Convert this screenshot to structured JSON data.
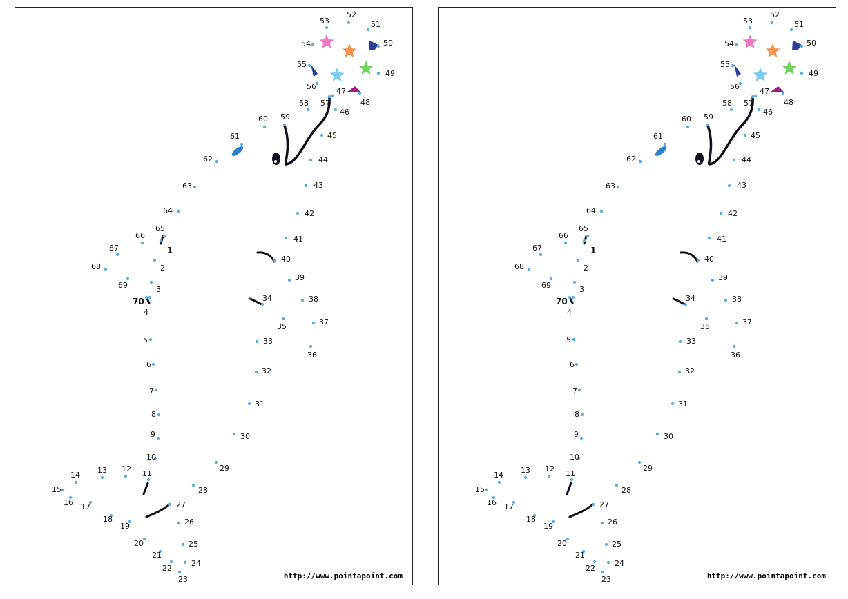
{
  "sheets": [
    {
      "id": "left"
    },
    {
      "id": "right"
    }
  ],
  "website_url": "http://www.pointapoint.com",
  "colors": {
    "dot": "#5aaee6",
    "line": "#150d1d",
    "eye_ellipse": "#2f7fcf",
    "star_pink": "#f07ac4",
    "star_orange": "#f39450",
    "star_green": "#6fd35c",
    "star_light_blue": "#7ccbf2",
    "flag_dark_blue": "#2c3f9c",
    "flag_purple": "#9b1f7e"
  },
  "points": [
    {
      "n": "1"
    },
    {
      "n": "2"
    },
    {
      "n": "3"
    },
    {
      "n": "4"
    },
    {
      "n": "5"
    },
    {
      "n": "6"
    },
    {
      "n": "7"
    },
    {
      "n": "8"
    },
    {
      "n": "9"
    },
    {
      "n": "10"
    },
    {
      "n": "11"
    },
    {
      "n": "12"
    },
    {
      "n": "13"
    },
    {
      "n": "14"
    },
    {
      "n": "15"
    },
    {
      "n": "16"
    },
    {
      "n": "17"
    },
    {
      "n": "18"
    },
    {
      "n": "19"
    },
    {
      "n": "20"
    },
    {
      "n": "21"
    },
    {
      "n": "22"
    },
    {
      "n": "23"
    },
    {
      "n": "24"
    },
    {
      "n": "25"
    },
    {
      "n": "26"
    },
    {
      "n": "27"
    },
    {
      "n": "28"
    },
    {
      "n": "29"
    },
    {
      "n": "30"
    },
    {
      "n": "31"
    },
    {
      "n": "32"
    },
    {
      "n": "33"
    },
    {
      "n": "34"
    },
    {
      "n": "35"
    },
    {
      "n": "36"
    },
    {
      "n": "37"
    },
    {
      "n": "38"
    },
    {
      "n": "39"
    },
    {
      "n": "40"
    },
    {
      "n": "41"
    },
    {
      "n": "42"
    },
    {
      "n": "43"
    },
    {
      "n": "44"
    },
    {
      "n": "45"
    },
    {
      "n": "46"
    },
    {
      "n": "47"
    },
    {
      "n": "48"
    },
    {
      "n": "49"
    },
    {
      "n": "50"
    },
    {
      "n": "51"
    },
    {
      "n": "52"
    },
    {
      "n": "53"
    },
    {
      "n": "54"
    },
    {
      "n": "55"
    },
    {
      "n": "56"
    },
    {
      "n": "57"
    },
    {
      "n": "58"
    },
    {
      "n": "59"
    },
    {
      "n": "60"
    },
    {
      "n": "61"
    },
    {
      "n": "62"
    },
    {
      "n": "63"
    },
    {
      "n": "64"
    },
    {
      "n": "65"
    },
    {
      "n": "66"
    },
    {
      "n": "67"
    },
    {
      "n": "68"
    },
    {
      "n": "69"
    },
    {
      "n": "70"
    }
  ]
}
